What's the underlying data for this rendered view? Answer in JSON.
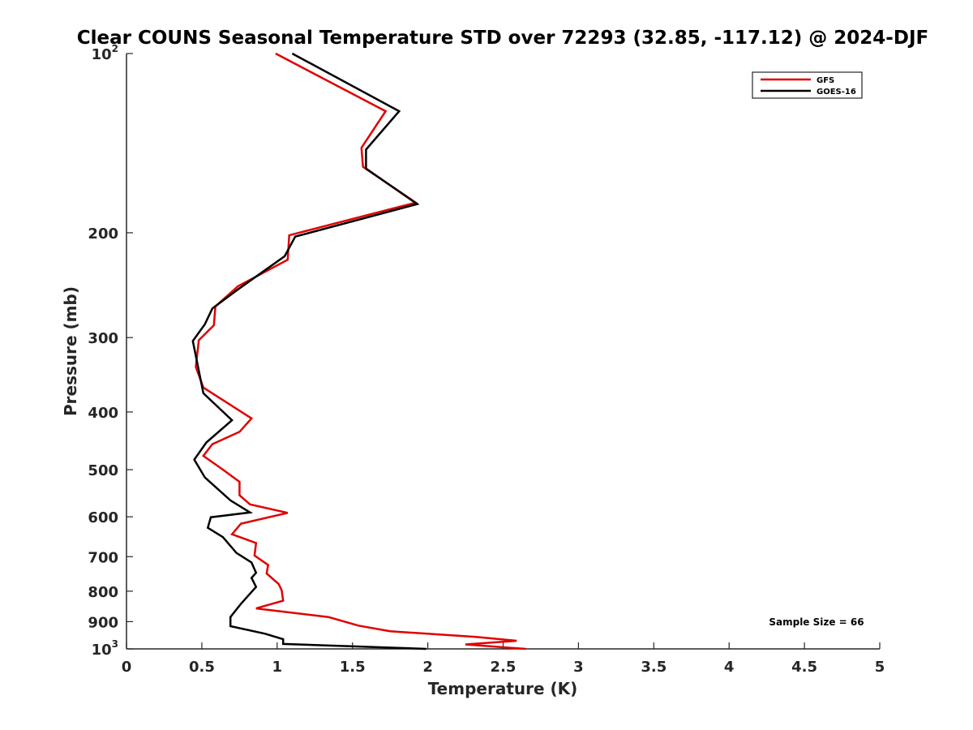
{
  "chart_data": {
    "type": "line",
    "title": "Clear COUNS Seasonal Temperature STD over 72293 (32.85, -117.12) @ 2024-DJF",
    "xlabel": "Temperature (K)",
    "ylabel": "Pressure (mb)",
    "xlim": [
      0,
      5
    ],
    "ylim": [
      100,
      1000
    ],
    "y_scale": "log",
    "y_reversed": true,
    "x_ticks": [
      0,
      0.5,
      1,
      1.5,
      2,
      2.5,
      3,
      3.5,
      4,
      4.5,
      5
    ],
    "x_tick_labels": [
      "0",
      "0.5",
      "1",
      "1.5",
      "2",
      "2.5",
      "3",
      "3.5",
      "4",
      "4.5",
      "5"
    ],
    "y_ticks": [
      100,
      200,
      300,
      400,
      500,
      600,
      700,
      800,
      900,
      1000
    ],
    "y_tick_labels": [
      {
        "base": "10",
        "exp": "2"
      },
      {
        "base": "200"
      },
      {
        "base": "300"
      },
      {
        "base": "400"
      },
      {
        "base": "500"
      },
      {
        "base": "600"
      },
      {
        "base": "700"
      },
      {
        "base": "800"
      },
      {
        "base": "900"
      },
      {
        "base": "10",
        "exp": "3"
      }
    ],
    "legend_position": "top-right",
    "grid": false,
    "annotation": "Sample Size = 66",
    "series": [
      {
        "name": "GFS",
        "color": "#e00000",
        "x": [
          0.99,
          1.72,
          1.56,
          1.57,
          1.92,
          1.08,
          1.07,
          0.74,
          0.59,
          0.58,
          0.48,
          0.46,
          0.51,
          0.83,
          0.75,
          0.57,
          0.51,
          0.64,
          0.75,
          0.75,
          0.82,
          1.07,
          0.76,
          0.7,
          0.86,
          0.85,
          0.94,
          0.93,
          1.01,
          1.03,
          1.04,
          0.86,
          1.34,
          1.54,
          1.75,
          2.32,
          2.59,
          2.25,
          2.65
        ],
        "y": [
          100,
          125,
          144,
          155,
          178,
          202,
          222,
          246,
          266,
          286,
          303,
          336,
          364,
          410,
          432,
          453,
          474,
          500,
          524,
          552,
          572,
          591,
          616,
          642,
          664,
          697,
          723,
          747,
          778,
          797,
          830,
          855,
          884,
          914,
          934,
          955,
          969,
          983,
          1000
        ]
      },
      {
        "name": "GOES-16",
        "color": "#000000",
        "x": [
          1.1,
          1.81,
          1.59,
          1.59,
          1.93,
          1.12,
          1.05,
          0.74,
          0.57,
          0.52,
          0.44,
          0.51,
          0.7,
          0.53,
          0.45,
          0.52,
          0.69,
          0.82,
          0.56,
          0.54,
          0.64,
          0.73,
          0.83,
          0.86,
          0.83,
          0.86,
          0.76,
          0.69,
          0.69,
          0.92,
          1.04,
          1.04,
          1.99
        ],
        "y": [
          100,
          125,
          145,
          156,
          179,
          203,
          219,
          249,
          268,
          285,
          304,
          372,
          413,
          450,
          481,
          515,
          563,
          590,
          601,
          626,
          649,
          690,
          716,
          745,
          760,
          787,
          840,
          884,
          916,
          943,
          963,
          981,
          1000
        ]
      }
    ]
  }
}
